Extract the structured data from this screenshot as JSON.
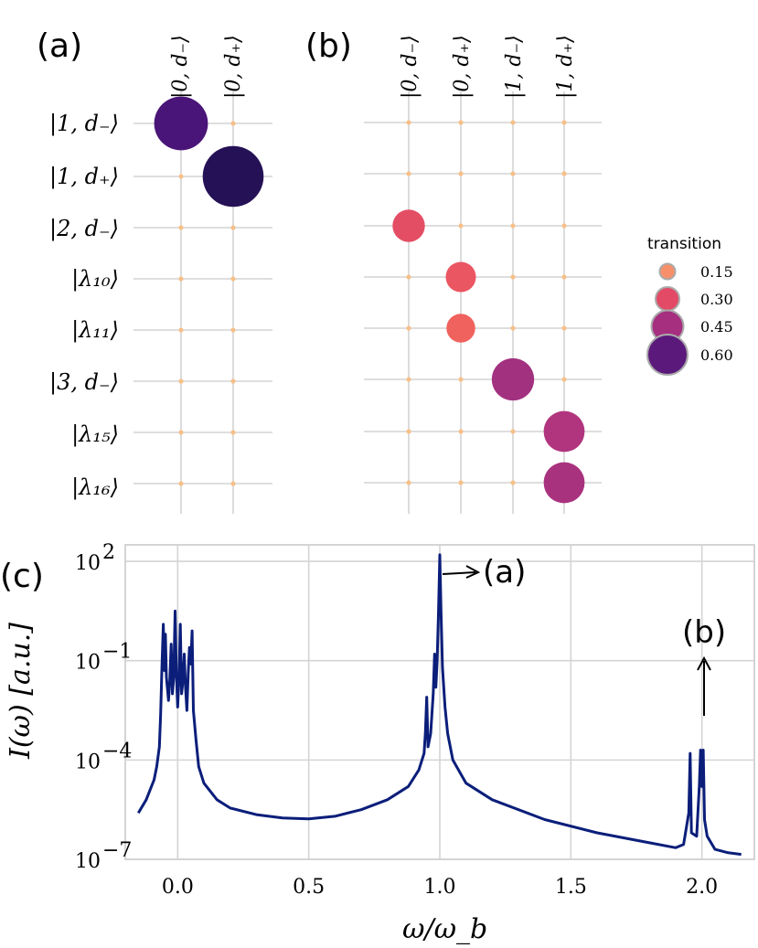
{
  "panels": {
    "a_label": "(a)",
    "b_label": "(b)",
    "c_label": "(c)"
  },
  "colors": {
    "grid": "#d4d4d4",
    "node": "#f7c08a",
    "line": "#0b1e7a",
    "legend_edge": "#aaaaaa"
  },
  "chart_data": [
    {
      "type": "scatter",
      "panel": "(a)",
      "x_categories": [
        "|0, d₋⟩",
        "|0, d₊⟩"
      ],
      "y_categories": [
        "|1, d₋⟩",
        "|1, d₊⟩",
        "|2, d₋⟩",
        "|λ₁₀⟩",
        "|λ₁₁⟩",
        "|3, d₋⟩",
        "|λ₁₅⟩",
        "|λ₁₆⟩"
      ],
      "points": [
        {
          "x": 0,
          "y": 0,
          "value": 0.6,
          "color": "#4a1578"
        },
        {
          "x": 1,
          "y": 1,
          "value": 0.7,
          "color": "#251156"
        }
      ]
    },
    {
      "type": "scatter",
      "panel": "(b)",
      "x_categories": [
        "|0, d₋⟩",
        "|0, d₊⟩",
        "|1, d₋⟩",
        "|1, d₊⟩"
      ],
      "y_count": 8,
      "points": [
        {
          "x": 0,
          "y": 2,
          "value": 0.3,
          "color": "#e44e65"
        },
        {
          "x": 1,
          "y": 3,
          "value": 0.27,
          "color": "#ea5661"
        },
        {
          "x": 1,
          "y": 4,
          "value": 0.25,
          "color": "#f0625d"
        },
        {
          "x": 2,
          "y": 5,
          "value": 0.44,
          "color": "#a23180"
        },
        {
          "x": 3,
          "y": 6,
          "value": 0.42,
          "color": "#b1357e"
        },
        {
          "x": 3,
          "y": 7,
          "value": 0.42,
          "color": "#a9327f"
        }
      ],
      "legend": {
        "title": "transition",
        "items": [
          {
            "label": "0.15",
            "value": 0.15,
            "color": "#f7906a"
          },
          {
            "label": "0.30",
            "value": 0.3,
            "color": "#e24a65"
          },
          {
            "label": "0.45",
            "value": 0.45,
            "color": "#a62f80"
          },
          {
            "label": "0.60",
            "value": 0.6,
            "color": "#5b1a7b"
          }
        ]
      }
    },
    {
      "type": "line",
      "panel": "(c)",
      "xlabel": "ω/ω_b",
      "ylabel": "I(ω) [a.u.]",
      "xlim": [
        -0.2,
        2.2
      ],
      "ylim_log10": [
        -7,
        2.5
      ],
      "yscale": "log",
      "grid": true,
      "x_ticks": [
        "0.0",
        "0.5",
        "1.0",
        "1.5",
        "2.0"
      ],
      "y_ticks": [
        "10^2",
        "10^-1",
        "10^-4",
        "10^-7"
      ],
      "series": [
        {
          "color": "#0b1e7a",
          "points": [
            [
              -0.15,
              -5.6
            ],
            [
              -0.12,
              -5.2
            ],
            [
              -0.09,
              -4.6
            ],
            [
              -0.08,
              -4.2
            ],
            [
              -0.07,
              -3.6
            ],
            [
              -0.065,
              -2.6
            ],
            [
              -0.06,
              -1.2
            ],
            [
              -0.055,
              0.1
            ],
            [
              -0.05,
              -1.3
            ],
            [
              -0.047,
              -0.2
            ],
            [
              -0.043,
              -1.5
            ],
            [
              -0.035,
              -2.2
            ],
            [
              -0.03,
              -1.6
            ],
            [
              -0.025,
              -0.5
            ],
            [
              -0.02,
              -2.0
            ],
            [
              -0.015,
              -1.5
            ],
            [
              -0.01,
              0.5
            ],
            [
              -0.005,
              -1.4
            ],
            [
              0.0,
              -2.4
            ],
            [
              0.005,
              -1.5
            ],
            [
              0.01,
              0.1
            ],
            [
              0.015,
              -2.0
            ],
            [
              0.02,
              -1.6
            ],
            [
              0.025,
              -0.8
            ],
            [
              0.03,
              -1.8
            ],
            [
              0.035,
              -2.5
            ],
            [
              0.04,
              -1.4
            ],
            [
              0.045,
              -0.6
            ],
            [
              0.05,
              -1.1
            ],
            [
              0.055,
              -0.1
            ],
            [
              0.06,
              -2.5
            ],
            [
              0.07,
              -3.4
            ],
            [
              0.08,
              -4.2
            ],
            [
              0.1,
              -4.7
            ],
            [
              0.15,
              -5.2
            ],
            [
              0.2,
              -5.45
            ],
            [
              0.3,
              -5.65
            ],
            [
              0.4,
              -5.75
            ],
            [
              0.5,
              -5.78
            ],
            [
              0.6,
              -5.7
            ],
            [
              0.7,
              -5.5
            ],
            [
              0.8,
              -5.2
            ],
            [
              0.88,
              -4.8
            ],
            [
              0.92,
              -4.3
            ],
            [
              0.94,
              -3.8
            ],
            [
              0.945,
              -3.2
            ],
            [
              0.95,
              -2.1
            ],
            [
              0.955,
              -3.6
            ],
            [
              0.965,
              -3.2
            ],
            [
              0.97,
              -2.6
            ],
            [
              0.975,
              -2.0
            ],
            [
              0.98,
              -0.8
            ],
            [
              0.985,
              -1.8
            ],
            [
              0.99,
              -1.0
            ],
            [
              0.995,
              0.5
            ],
            [
              1.0,
              2.2
            ],
            [
              1.005,
              0.4
            ],
            [
              1.01,
              -1.2
            ],
            [
              1.02,
              -2.4
            ],
            [
              1.03,
              -3.2
            ],
            [
              1.05,
              -4.0
            ],
            [
              1.1,
              -4.7
            ],
            [
              1.2,
              -5.2
            ],
            [
              1.4,
              -5.8
            ],
            [
              1.6,
              -6.2
            ],
            [
              1.8,
              -6.5
            ],
            [
              1.9,
              -6.65
            ],
            [
              1.93,
              -6.55
            ],
            [
              1.95,
              -5.6
            ],
            [
              1.955,
              -3.8
            ],
            [
              1.96,
              -6.2
            ],
            [
              1.98,
              -6.3
            ],
            [
              1.99,
              -4.8
            ],
            [
              1.995,
              -3.7
            ],
            [
              2.0,
              -4.8
            ],
            [
              2.005,
              -3.7
            ],
            [
              2.01,
              -5.8
            ],
            [
              2.02,
              -6.3
            ],
            [
              2.05,
              -6.7
            ],
            [
              2.1,
              -6.8
            ],
            [
              2.15,
              -6.85
            ]
          ]
        }
      ],
      "annotations": [
        {
          "text": "(a)"
        },
        {
          "text": "(b)"
        }
      ]
    }
  ]
}
